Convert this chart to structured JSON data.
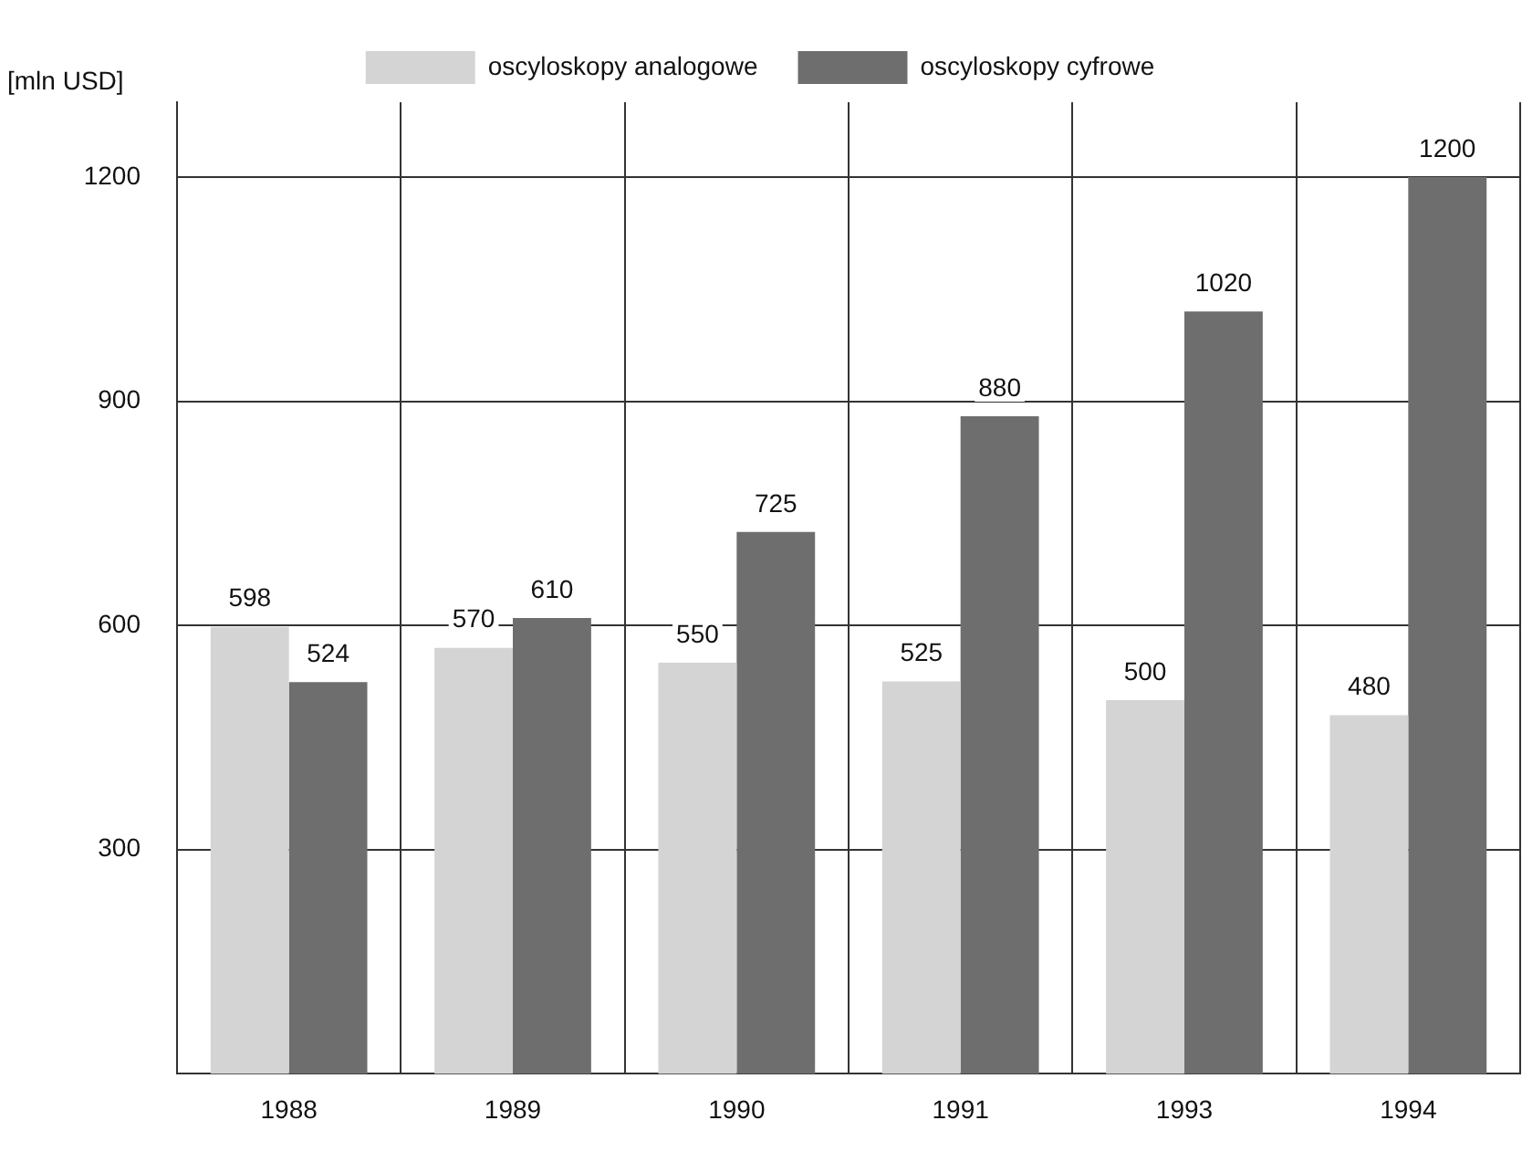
{
  "chart_data": {
    "type": "bar",
    "ylabel": "[mln USD]",
    "categories": [
      "1988",
      "1989",
      "1990",
      "1991",
      "1993",
      "1994"
    ],
    "series": [
      {
        "name": "oscyloskopy analogowe",
        "color": "#d4d4d4",
        "values": [
          598,
          570,
          550,
          525,
          500,
          480
        ]
      },
      {
        "name": "oscyloskopy cyfrowe",
        "color": "#6e6e6e",
        "values": [
          524,
          610,
          725,
          880,
          1020,
          1200
        ]
      }
    ],
    "ylim": [
      0,
      1300
    ],
    "yticks": [
      300,
      600,
      900,
      1200
    ],
    "grid": true,
    "legend": "top",
    "data_labels": true
  }
}
